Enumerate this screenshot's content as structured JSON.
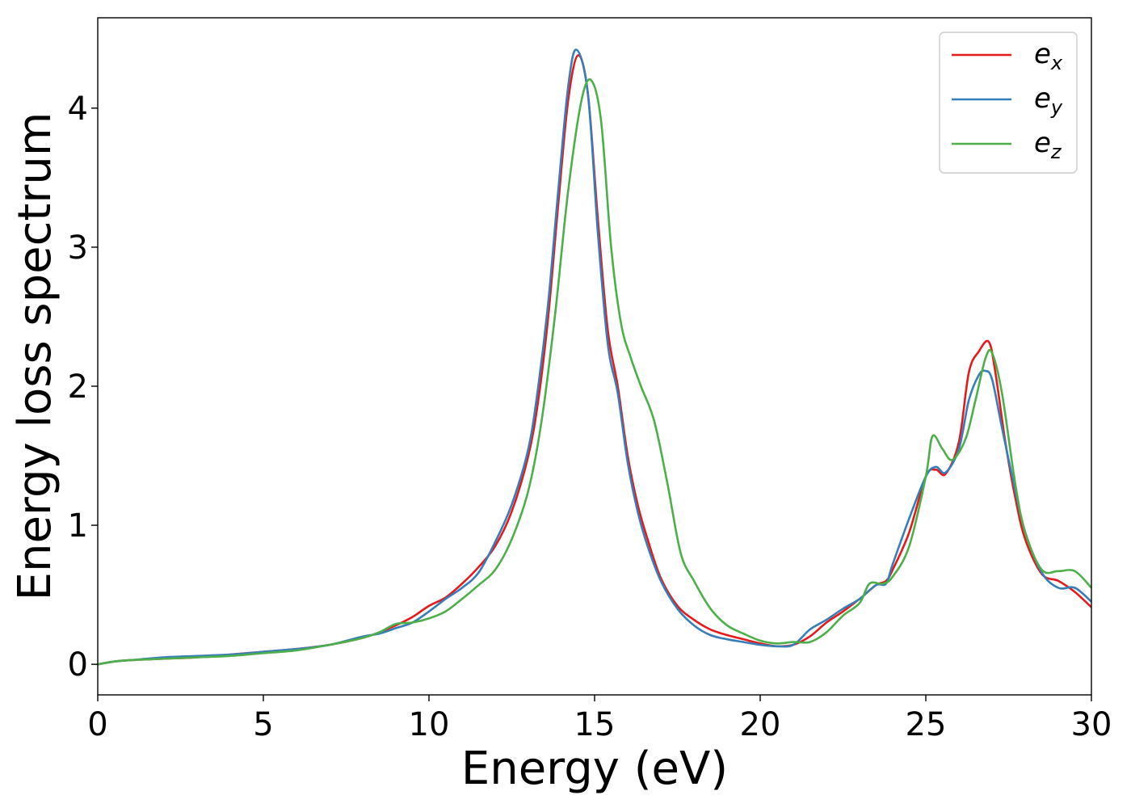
{
  "chart_data": {
    "type": "line",
    "title": "",
    "xlabel": "Energy (eV)",
    "ylabel": "Energy loss spectrum",
    "xlim": [
      0,
      30
    ],
    "ylim": [
      -0.22,
      4.65
    ],
    "xticks": [
      0,
      5,
      10,
      15,
      20,
      25,
      30
    ],
    "yticks": [
      0,
      1,
      2,
      3,
      4
    ],
    "grid": false,
    "legend_position": "top-right",
    "series": [
      {
        "name": "x",
        "legend_base": "e",
        "legend_sub": "x",
        "color": "#e41a1c",
        "x": [
          0,
          0.5,
          1,
          2,
          3,
          4,
          5,
          6,
          7,
          8,
          8.5,
          9,
          9.5,
          10,
          10.5,
          11,
          11.5,
          12,
          12.5,
          13,
          13.3,
          13.6,
          13.9,
          14.2,
          14.5,
          14.8,
          15.1,
          15.4,
          15.7,
          16,
          16.3,
          16.6,
          17,
          17.5,
          18,
          18.5,
          19,
          19.5,
          20,
          20.5,
          21,
          21.5,
          22,
          22.5,
          23,
          23.5,
          23.8,
          24,
          24.5,
          25,
          25.3,
          25.6,
          26,
          26.3,
          26.6,
          26.9,
          27.1,
          27.4,
          27.7,
          28,
          28.5,
          29,
          29.5,
          30
        ],
        "y": [
          0,
          0.02,
          0.03,
          0.04,
          0.05,
          0.07,
          0.09,
          0.11,
          0.14,
          0.19,
          0.23,
          0.28,
          0.34,
          0.42,
          0.48,
          0.58,
          0.7,
          0.85,
          1.1,
          1.5,
          1.9,
          2.5,
          3.3,
          4.05,
          4.38,
          4.1,
          3.2,
          2.4,
          2.0,
          1.5,
          1.15,
          0.9,
          0.62,
          0.42,
          0.32,
          0.25,
          0.21,
          0.18,
          0.15,
          0.13,
          0.14,
          0.2,
          0.3,
          0.38,
          0.47,
          0.57,
          0.6,
          0.68,
          0.95,
          1.35,
          1.4,
          1.37,
          1.6,
          2.1,
          2.25,
          2.32,
          2.1,
          1.6,
          1.2,
          0.9,
          0.65,
          0.6,
          0.52,
          0.41
        ]
      },
      {
        "name": "y",
        "legend_base": "e",
        "legend_sub": "y",
        "color": "#377eb8",
        "x": [
          0,
          0.5,
          1,
          2,
          3,
          4,
          5,
          6,
          7,
          8,
          8.5,
          9,
          9.5,
          10,
          10.5,
          11,
          11.5,
          12,
          12.5,
          13,
          13.3,
          13.6,
          13.9,
          14.2,
          14.45,
          14.8,
          15.1,
          15.4,
          15.7,
          16,
          16.3,
          16.6,
          17,
          17.5,
          18,
          18.5,
          19,
          19.5,
          20,
          20.5,
          21,
          21.5,
          22,
          22.5,
          23,
          23.5,
          23.8,
          24,
          24.5,
          25,
          25.3,
          25.6,
          26,
          26.3,
          26.6,
          26.8,
          27,
          27.3,
          27.7,
          28,
          28.5,
          29,
          29.5,
          30
        ],
        "y": [
          0,
          0.02,
          0.03,
          0.05,
          0.06,
          0.07,
          0.09,
          0.11,
          0.14,
          0.2,
          0.22,
          0.26,
          0.3,
          0.38,
          0.47,
          0.55,
          0.66,
          0.88,
          1.15,
          1.55,
          2.0,
          2.6,
          3.4,
          4.15,
          4.42,
          4.1,
          3.1,
          2.3,
          1.95,
          1.45,
          1.1,
          0.85,
          0.6,
          0.4,
          0.28,
          0.21,
          0.18,
          0.16,
          0.14,
          0.13,
          0.14,
          0.25,
          0.32,
          0.4,
          0.47,
          0.57,
          0.58,
          0.72,
          1.05,
          1.35,
          1.42,
          1.38,
          1.55,
          1.9,
          2.08,
          2.11,
          2.05,
          1.7,
          1.25,
          0.95,
          0.66,
          0.55,
          0.55,
          0.45
        ]
      },
      {
        "name": "z",
        "legend_base": "e",
        "legend_sub": "z",
        "color": "#4daf4a",
        "x": [
          0,
          0.5,
          1,
          2,
          3,
          4,
          5,
          6,
          7,
          8,
          8.5,
          9,
          9.5,
          10,
          10.5,
          11,
          11.5,
          12,
          12.5,
          13,
          13.4,
          13.8,
          14.2,
          14.6,
          14.9,
          15.2,
          15.5,
          15.8,
          16.1,
          16.4,
          16.8,
          17.2,
          17.6,
          18,
          18.5,
          19,
          19.5,
          20,
          20.5,
          21,
          21.5,
          22,
          22.5,
          23,
          23.3,
          23.7,
          24,
          24.5,
          25,
          25.2,
          25.5,
          25.8,
          26.2,
          26.5,
          26.8,
          27,
          27.3,
          27.7,
          28,
          28.5,
          29,
          29.5,
          30
        ],
        "y": [
          0,
          0.02,
          0.03,
          0.04,
          0.05,
          0.06,
          0.08,
          0.1,
          0.14,
          0.19,
          0.23,
          0.29,
          0.3,
          0.33,
          0.38,
          0.47,
          0.57,
          0.68,
          0.9,
          1.25,
          1.75,
          2.5,
          3.4,
          4.05,
          4.2,
          3.9,
          3.0,
          2.45,
          2.2,
          2.0,
          1.75,
          1.3,
          0.8,
          0.6,
          0.4,
          0.28,
          0.22,
          0.17,
          0.15,
          0.16,
          0.16,
          0.23,
          0.35,
          0.44,
          0.58,
          0.58,
          0.63,
          0.85,
          1.35,
          1.64,
          1.55,
          1.47,
          1.62,
          1.9,
          2.2,
          2.24,
          1.95,
          1.3,
          0.95,
          0.68,
          0.67,
          0.67,
          0.55
        ]
      }
    ]
  }
}
